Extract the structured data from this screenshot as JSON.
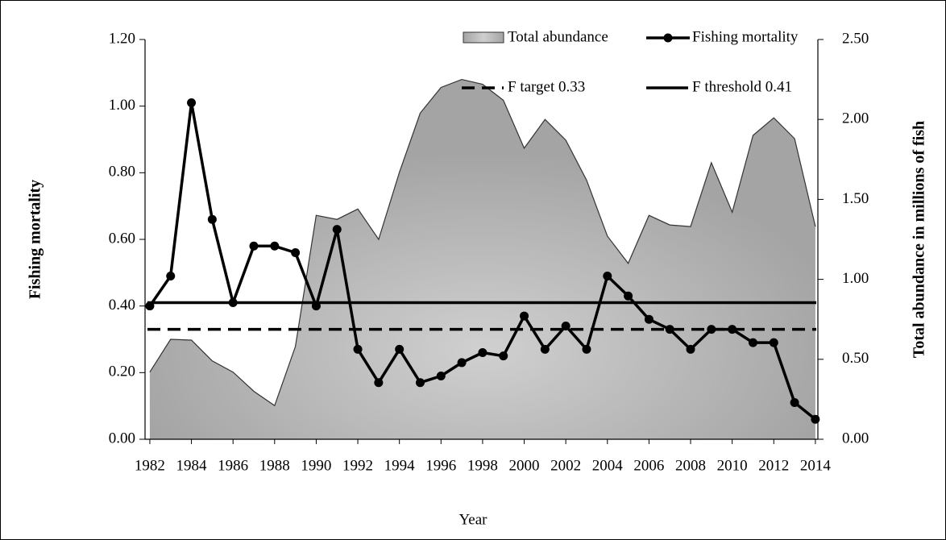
{
  "chart_data": {
    "type": "combo",
    "x_label": "Year",
    "y_label": "Fishing mortality",
    "y2_label": "Total abundance in millions of fish",
    "x": [
      1982,
      1983,
      1984,
      1985,
      1986,
      1987,
      1988,
      1989,
      1990,
      1991,
      1992,
      1993,
      1994,
      1995,
      1996,
      1997,
      1998,
      1999,
      2000,
      2001,
      2002,
      2003,
      2004,
      2005,
      2006,
      2007,
      2008,
      2009,
      2010,
      2011,
      2012,
      2013,
      2014
    ],
    "xlim": [
      1981.77,
      2014.12
    ],
    "xticks": [
      1982,
      1984,
      1986,
      1988,
      1990,
      1992,
      1994,
      1996,
      1998,
      2000,
      2002,
      2004,
      2006,
      2008,
      2010,
      2012,
      2014
    ],
    "ylim": [
      0,
      1.2
    ],
    "yticks": [
      {
        "value": 0,
        "label": "0.00"
      },
      {
        "value": 0.2,
        "label": "0.20"
      },
      {
        "value": 0.4,
        "label": "0.40"
      },
      {
        "value": 0.6,
        "label": "0.60"
      },
      {
        "value": 0.8,
        "label": "0.80"
      },
      {
        "value": 1.0,
        "label": "1.00"
      },
      {
        "value": 1.2,
        "label": "1.20"
      }
    ],
    "y2lim": [
      0,
      2.5
    ],
    "y2ticks": [
      {
        "value": 0,
        "label": "0.00"
      },
      {
        "value": 0.5,
        "label": "0.50"
      },
      {
        "value": 1.0,
        "label": "1.00"
      },
      {
        "value": 1.5,
        "label": "1.50"
      },
      {
        "value": 2.0,
        "label": "2.00"
      },
      {
        "value": 2.5,
        "label": "2.50"
      }
    ],
    "series": [
      {
        "name": "Total abundance",
        "type": "area",
        "axis": "y2",
        "color": "#a8a8a8",
        "values": [
          0.42,
          0.625,
          0.62,
          0.49,
          0.42,
          0.3,
          0.21,
          0.58,
          1.4,
          1.375,
          1.44,
          1.25,
          1.67,
          2.04,
          2.2,
          2.25,
          2.22,
          2.12,
          1.82,
          2.0,
          1.87,
          1.62,
          1.27,
          1.1,
          1.4,
          1.34,
          1.33,
          1.73,
          1.42,
          1.9,
          2.01,
          1.88,
          1.33
        ]
      },
      {
        "name": "Fishing mortality",
        "type": "line",
        "color": "#000000",
        "values": [
          0.4,
          0.49,
          1.01,
          0.66,
          0.41,
          0.58,
          0.58,
          0.56,
          0.4,
          0.63,
          0.27,
          0.17,
          0.27,
          0.17,
          0.19,
          0.23,
          0.26,
          0.25,
          0.37,
          0.27,
          0.34,
          0.27,
          0.49,
          0.43,
          0.36,
          0.33,
          0.27,
          0.33,
          0.33,
          0.29,
          0.29,
          0.11,
          0.06
        ]
      }
    ],
    "reference_lines": [
      {
        "name": "F target 0.33",
        "value": 0.33,
        "style": "dashed",
        "color": "#000000"
      },
      {
        "name": "F threshold 0.41",
        "value": 0.41,
        "style": "solid",
        "color": "#000000"
      }
    ]
  }
}
